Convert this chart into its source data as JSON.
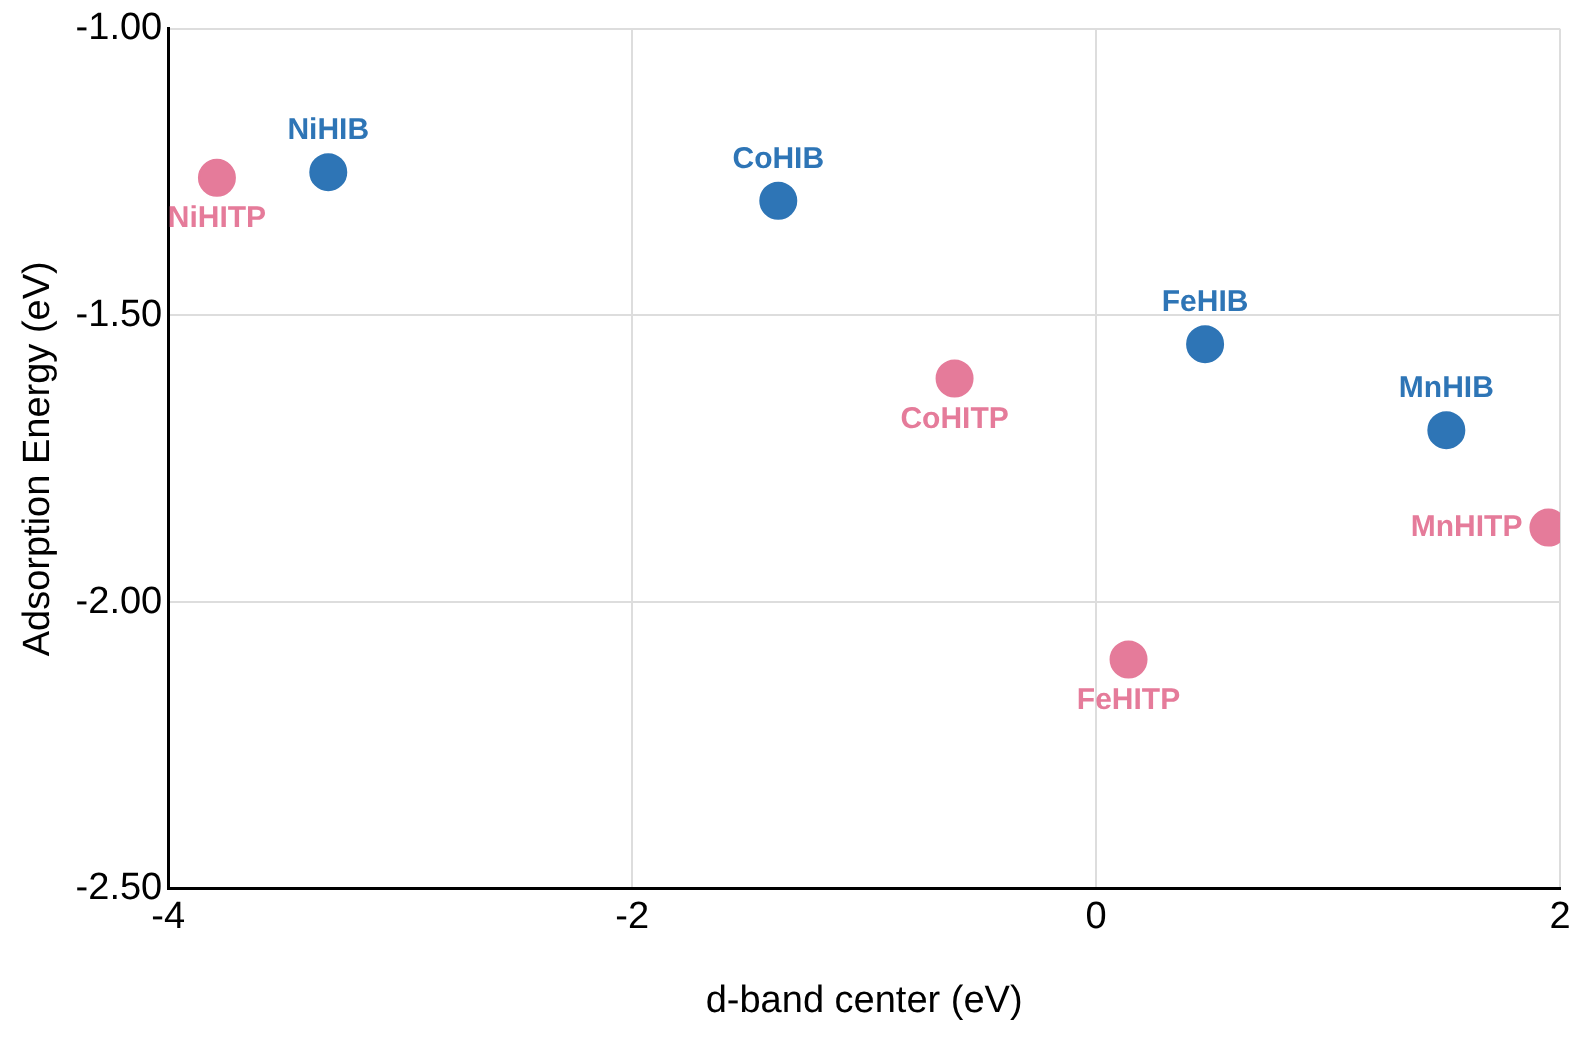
{
  "chart_data": {
    "type": "scatter",
    "xlabel": "d-band center (eV)",
    "ylabel": "Adsorption Energy (eV)",
    "xlim": [
      -4,
      2
    ],
    "xticks": [
      -4,
      -2,
      0,
      2
    ],
    "ylim": [
      -2.5,
      -1
    ],
    "yticks": [
      {
        "value": -2.5,
        "label": "-2.50"
      },
      {
        "value": -2,
        "label": "-2.00"
      },
      {
        "value": -1.5,
        "label": "-1.50"
      },
      {
        "value": -1,
        "label": "-1.00"
      }
    ],
    "grid": true,
    "legend": false,
    "marker": "circle",
    "series": [
      {
        "color": "#2e75b6",
        "x": [
          -3.31,
          -1.37,
          0.47,
          1.51
        ],
        "values": [
          -1.25,
          -1.3,
          -1.55,
          -1.7
        ]
      },
      {
        "color": "#e57b9a",
        "x": [
          -3.79,
          -0.61,
          0.14,
          1.95
        ],
        "values": [
          -1.26,
          -1.61,
          -2.1,
          -1.87
        ]
      }
    ],
    "annotations": [
      {
        "text": "NiHIB",
        "x": -3.31,
        "y": -1.25
      },
      {
        "text": "CoHIB",
        "x": -1.37,
        "y": -1.3
      },
      {
        "text": "FeHIB",
        "x": 0.47,
        "y": -1.55
      },
      {
        "text": "MnHIB",
        "x": 1.51,
        "y": -1.7
      },
      {
        "text": "NiHITP",
        "x": -3.79,
        "y": -1.26
      },
      {
        "text": "CoHITP",
        "x": -0.61,
        "y": -1.61
      },
      {
        "text": "FeHITP",
        "x": 0.14,
        "y": -2.1
      },
      {
        "text": "MnHITP",
        "x": 1.95,
        "y": -1.87
      }
    ]
  }
}
